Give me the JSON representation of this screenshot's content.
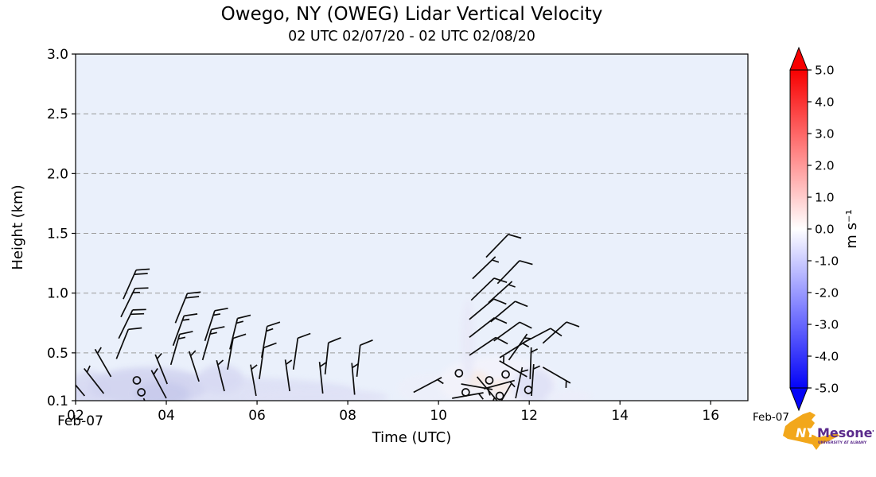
{
  "title": "Owego, NY (OWEG) Lidar Vertical Velocity",
  "subtitle": "02 UTC 02/07/20 - 02 UTC 02/08/20",
  "x_axis": {
    "label": "Time (UTC)",
    "date_left": "Feb-07",
    "date_right": "Feb-07"
  },
  "y_axis": {
    "label": "Height (km)"
  },
  "colorbar": {
    "unit": "m s⁻¹",
    "tick_labels": [
      "5.0",
      "4.0",
      "3.0",
      "2.0",
      "1.0",
      "0.0",
      "-1.0",
      "-2.0",
      "-3.0",
      "-4.0",
      "-5.0"
    ],
    "tick_values": [
      5,
      4,
      3,
      2,
      1,
      0,
      -1,
      -2,
      -3,
      -4,
      -5
    ],
    "max_color": "#f70000",
    "quarter_color": "#ff8080",
    "mid_color": "#ffffff",
    "threequarter_color": "#8080ff",
    "min_color": "#0404f7"
  },
  "logo": {
    "nys": "NYS",
    "name": "Mesonet",
    "tagline": "UNIVERSITY AT ALBANY",
    "state_color": "#F2A71B",
    "text_color": "#5B2B8C"
  },
  "chart_data": {
    "type": "heatmap",
    "title": "Owego, NY (OWEG) Lidar Vertical Velocity",
    "subtitle": "02 UTC 02/07/20 - 02 UTC 02/08/20",
    "xlabel": "Time (UTC)",
    "ylabel": "Height (km)",
    "colorbar_label": "m s⁻¹",
    "x_range_hours_utc": [
      2,
      16.82
    ],
    "y_range_km": [
      0.1,
      3.0
    ],
    "x_ticks": {
      "values": [
        2,
        4,
        6,
        8,
        10,
        12,
        14,
        16
      ],
      "labels": [
        "02",
        "04",
        "06",
        "08",
        "10",
        "12",
        "14",
        "16"
      ]
    },
    "y_ticks": {
      "values": [
        3.0,
        2.5,
        2.0,
        1.5,
        1.0,
        0.5,
        0.1
      ],
      "labels": [
        "3.0",
        "2.5",
        "2.0",
        "1.5",
        "1.0",
        "0.5",
        "0.1"
      ]
    },
    "grid_heights_km": [
      0.5,
      1.0,
      1.5,
      2.0,
      2.5
    ],
    "grid": true,
    "colorbar_range_ms": [
      -5.0,
      5.0
    ],
    "background_velocity_color": "#eaf0fb",
    "shading_patches": [
      {
        "t": 5.0,
        "h": 0.17,
        "rt": 3.2,
        "rh": 0.13,
        "color": "#dde0f5"
      },
      {
        "t": 2.3,
        "h": 0.2,
        "rt": 0.45,
        "rh": 0.15,
        "color": "#d8daf3"
      },
      {
        "t": 3.6,
        "h": 0.22,
        "rt": 1.3,
        "rh": 0.16,
        "color": "#d2d4f0"
      },
      {
        "t": 3.9,
        "h": 0.16,
        "rt": 0.6,
        "rh": 0.1,
        "color": "#c8cbec"
      },
      {
        "t": 5.2,
        "h": 0.28,
        "rt": 0.5,
        "rh": 0.12,
        "color": "#d8daf3"
      },
      {
        "t": 7.3,
        "h": 0.13,
        "rt": 1.6,
        "rh": 0.07,
        "color": "#e0e2f6"
      },
      {
        "t": 9.8,
        "h": 0.2,
        "rt": 0.7,
        "rh": 0.12,
        "color": "#edeffa"
      },
      {
        "t": 11.3,
        "h": 0.25,
        "rt": 1.3,
        "rh": 0.22,
        "color": "#f3f3fb"
      },
      {
        "t": 10.85,
        "h": 0.28,
        "rt": 0.25,
        "rh": 0.07,
        "color": "#f7ebe6"
      },
      {
        "t": 11.35,
        "h": 0.22,
        "rt": 0.25,
        "rh": 0.06,
        "color": "#f7ebe6"
      },
      {
        "t": 10.65,
        "h": 0.6,
        "rt": 0.15,
        "rh": 0.35,
        "color": "#e8e9f8"
      },
      {
        "t": 12.1,
        "h": 0.22,
        "rt": 0.45,
        "rh": 0.15,
        "color": "#dfe1f6"
      },
      {
        "t": 12.9,
        "h": 0.13,
        "rt": 0.5,
        "rh": 0.06,
        "color": "#eceefa"
      }
    ],
    "wind_barbs": [
      {
        "t": 2.2,
        "h": 0.14,
        "dir": -40,
        "spd": 5
      },
      {
        "t": 2.62,
        "h": 0.16,
        "dir": -38,
        "spd": 5
      },
      {
        "t": 2.78,
        "h": 0.3,
        "dir": -30,
        "spd": 5
      },
      {
        "t": 2.9,
        "h": 0.45,
        "dir": 22,
        "spd": 10
      },
      {
        "t": 2.95,
        "h": 0.62,
        "dir": 26,
        "spd": 20
      },
      {
        "t": 3.0,
        "h": 0.8,
        "dir": 26,
        "spd": 15
      },
      {
        "t": 3.05,
        "h": 0.95,
        "dir": 24,
        "spd": 20
      },
      {
        "t": 3.35,
        "h": 0.27,
        "type": "calm"
      },
      {
        "t": 3.45,
        "h": 0.17,
        "type": "calm"
      },
      {
        "t": 3.5,
        "h": 0.12,
        "dir": 155,
        "spd": 3
      },
      {
        "t": 4.0,
        "h": 0.12,
        "dir": -28,
        "spd": 3
      },
      {
        "t": 4.02,
        "h": 0.24,
        "dir": -22,
        "spd": 5
      },
      {
        "t": 4.1,
        "h": 0.4,
        "dir": 16,
        "spd": 15
      },
      {
        "t": 4.15,
        "h": 0.56,
        "dir": 20,
        "spd": 15
      },
      {
        "t": 4.2,
        "h": 0.75,
        "dir": 22,
        "spd": 20
      },
      {
        "t": 4.72,
        "h": 0.26,
        "dir": -18,
        "spd": 5
      },
      {
        "t": 4.8,
        "h": 0.44,
        "dir": 16,
        "spd": 15
      },
      {
        "t": 4.85,
        "h": 0.6,
        "dir": 18,
        "spd": 15
      },
      {
        "t": 5.28,
        "h": 0.18,
        "dir": -14,
        "spd": 4
      },
      {
        "t": 5.35,
        "h": 0.36,
        "dir": 10,
        "spd": 10
      },
      {
        "t": 5.4,
        "h": 0.53,
        "dir": 14,
        "spd": 15
      },
      {
        "t": 5.98,
        "h": 0.14,
        "dir": -10,
        "spd": 4
      },
      {
        "t": 6.05,
        "h": 0.28,
        "dir": 8,
        "spd": 10
      },
      {
        "t": 6.1,
        "h": 0.46,
        "dir": 10,
        "spd": 15
      },
      {
        "t": 6.72,
        "h": 0.18,
        "dir": -8,
        "spd": 4
      },
      {
        "t": 6.8,
        "h": 0.36,
        "dir": 8,
        "spd": 10
      },
      {
        "t": 7.45,
        "h": 0.16,
        "dir": -6,
        "spd": 3
      },
      {
        "t": 7.5,
        "h": 0.32,
        "dir": 6,
        "spd": 8
      },
      {
        "t": 8.15,
        "h": 0.15,
        "dir": -5,
        "spd": 3
      },
      {
        "t": 8.2,
        "h": 0.3,
        "dir": 6,
        "spd": 8
      },
      {
        "t": 9.45,
        "h": 0.17,
        "dir": 62,
        "spd": 5
      },
      {
        "t": 11.05,
        "h": 1.3,
        "dir": 44,
        "spd": 10
      },
      {
        "t": 10.75,
        "h": 1.12,
        "dir": 46,
        "spd": 4
      },
      {
        "t": 11.3,
        "h": 1.08,
        "dir": 44,
        "spd": 10
      },
      {
        "t": 10.72,
        "h": 0.94,
        "dir": 46,
        "spd": 8
      },
      {
        "t": 11.1,
        "h": 0.92,
        "dir": 48,
        "spd": 5
      },
      {
        "t": 10.68,
        "h": 0.78,
        "dir": 50,
        "spd": 8
      },
      {
        "t": 11.15,
        "h": 0.76,
        "dir": 50,
        "spd": 8
      },
      {
        "t": 10.68,
        "h": 0.63,
        "dir": 52,
        "spd": 8
      },
      {
        "t": 11.22,
        "h": 0.6,
        "dir": 54,
        "spd": 8
      },
      {
        "t": 11.85,
        "h": 0.58,
        "dir": 62,
        "spd": 8
      },
      {
        "t": 10.68,
        "h": 0.48,
        "dir": 56,
        "spd": 8
      },
      {
        "t": 11.35,
        "h": 0.46,
        "dir": 58,
        "spd": 5
      },
      {
        "t": 12.3,
        "h": 0.58,
        "dir": 48,
        "spd": 8
      },
      {
        "t": 10.45,
        "h": 0.33,
        "type": "calm"
      },
      {
        "t": 10.6,
        "h": 0.17,
        "type": "calm"
      },
      {
        "t": 11.12,
        "h": 0.27,
        "type": "calm"
      },
      {
        "t": 11.48,
        "h": 0.32,
        "type": "calm"
      },
      {
        "t": 11.35,
        "h": 0.14,
        "type": "calm"
      },
      {
        "t": 11.98,
        "h": 0.19,
        "type": "calm"
      },
      {
        "t": 10.3,
        "h": 0.12,
        "dir": 80,
        "spd": 3
      },
      {
        "t": 10.5,
        "h": 0.24,
        "dir": 100,
        "spd": 4
      },
      {
        "t": 10.85,
        "h": 0.3,
        "dir": 140,
        "spd": 4
      },
      {
        "t": 11.0,
        "h": 0.2,
        "dir": 75,
        "spd": 5
      },
      {
        "t": 11.6,
        "h": 0.24,
        "dir": -150,
        "spd": 4
      },
      {
        "t": 11.7,
        "h": 0.12,
        "dir": 12,
        "spd": 3
      },
      {
        "t": 11.95,
        "h": 0.3,
        "dir": -60,
        "spd": 4
      },
      {
        "t": 12.02,
        "h": 0.28,
        "dir": 2,
        "spd": 3
      },
      {
        "t": 12.05,
        "h": 0.14,
        "dir": 4,
        "spd": 3
      },
      {
        "t": 11.55,
        "h": 0.44,
        "dir": 35,
        "spd": 5
      },
      {
        "t": 12.3,
        "h": 0.38,
        "dir": 120,
        "spd": 3
      }
    ]
  }
}
